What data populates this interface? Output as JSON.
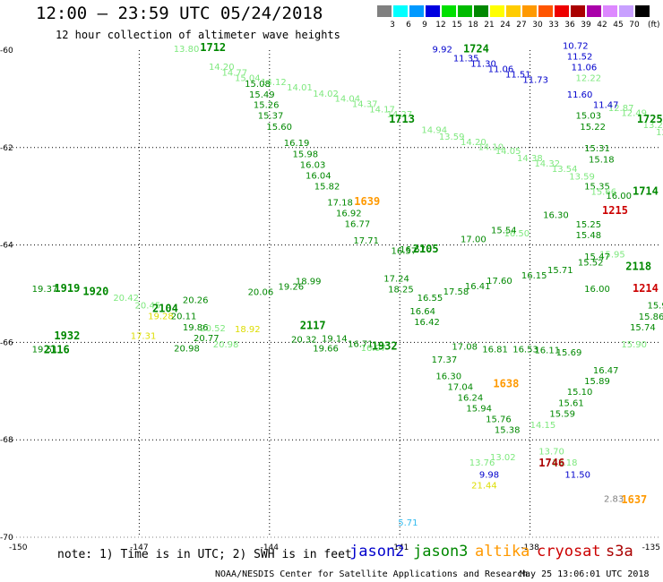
{
  "title": "12:00 – 23:59 UTC 05/24/2018",
  "subtitle": "12 hour collection of altimeter wave heights",
  "legend": {
    "values": [
      "3",
      "6",
      "9",
      "12",
      "15",
      "18",
      "21",
      "24",
      "27",
      "30",
      "33",
      "36",
      "39",
      "42",
      "45",
      "70"
    ],
    "unit": "(ft)",
    "colors": [
      "#808080",
      "#00ffff",
      "#0099ff",
      "#0000e0",
      "#00e000",
      "#00bb00",
      "#008800",
      "#ffff00",
      "#ffcc00",
      "#ff9900",
      "#ff5500",
      "#ee0000",
      "#aa0000",
      "#aa00aa",
      "#dd88ff",
      "#c8a0ff",
      "#000000"
    ]
  },
  "axes": {
    "lat_labels": [
      "-60",
      "-62",
      "-64",
      "-66",
      "-68",
      "-70"
    ],
    "lon_labels": [
      "-150",
      "-147",
      "-144",
      "-141",
      "-138",
      "-135"
    ]
  },
  "note": "note: 1) Time is in UTC; 2) SWH is in feet",
  "satellites": [
    {
      "name": "jason2",
      "color": "#0000cc"
    },
    {
      "name": "jason3",
      "color": "#008800"
    },
    {
      "name": "altika",
      "color": "#ff9900"
    },
    {
      "name": "cryosat",
      "color": "#cc0000"
    },
    {
      "name": "s3a",
      "color": "#aa0000"
    }
  ],
  "credit": "NOAA/NESDIS Center for Satellite Applications and Research",
  "timestamp": "May 25 13:06:01 UTC 2018",
  "map_data": {
    "lon_range": [
      -150,
      -135
    ],
    "lat_range": [
      -70,
      -60
    ],
    "track_time_labels": [
      {
        "text": "1712",
        "lon": -145.6,
        "lat": -60.02,
        "color": "#008800"
      },
      {
        "text": "1724",
        "lon": -139.54,
        "lat": -60.05,
        "color": "#008800"
      },
      {
        "text": "1713",
        "lon": -141.25,
        "lat": -61.49,
        "color": "#008800"
      },
      {
        "text": "1725",
        "lon": -135.54,
        "lat": -61.49,
        "color": "#008800"
      },
      {
        "text": "1639",
        "lon": -142.05,
        "lat": -63.18,
        "color": "#ff9900"
      },
      {
        "text": "1714",
        "lon": -135.64,
        "lat": -62.97,
        "color": "#008800"
      },
      {
        "text": "1215",
        "lon": -136.34,
        "lat": -63.36,
        "color": "#cc0000"
      },
      {
        "text": "2105",
        "lon": -140.7,
        "lat": -64.15,
        "color": "#008800"
      },
      {
        "text": "2118",
        "lon": -135.8,
        "lat": -64.51,
        "color": "#008800"
      },
      {
        "text": "1214",
        "lon": -135.64,
        "lat": -64.96,
        "color": "#cc0000"
      },
      {
        "text": "1919",
        "lon": -148.96,
        "lat": -64.96,
        "color": "#008800"
      },
      {
        "text": "1920",
        "lon": -148.3,
        "lat": -65.03,
        "color": "#008800"
      },
      {
        "text": "2104",
        "lon": -146.7,
        "lat": -65.38,
        "color": "#008800"
      },
      {
        "text": "2117",
        "lon": -143.3,
        "lat": -65.73,
        "color": "#008800"
      },
      {
        "text": "1932",
        "lon": -148.96,
        "lat": -65.94,
        "color": "#008800"
      },
      {
        "text": "2116",
        "lon": -149.2,
        "lat": -66.22,
        "color": "#008800"
      },
      {
        "text": "1932",
        "lon": -141.65,
        "lat": -66.15,
        "color": "#008800"
      },
      {
        "text": "1638",
        "lon": -138.85,
        "lat": -66.92,
        "color": "#ff9900"
      },
      {
        "text": "1746",
        "lon": -137.8,
        "lat": -68.55,
        "color": "#aa0000"
      },
      {
        "text": "1637",
        "lon": -135.9,
        "lat": -69.3,
        "color": "#ff9900"
      }
    ],
    "swh_labels": [
      {
        "text": "13.80",
        "lon": -146.21,
        "lat": -60.04,
        "color": "#7ee87e"
      },
      {
        "text": "15.08",
        "lon": -144.57,
        "lat": -60.75,
        "color": "#008800"
      },
      {
        "text": "15.49",
        "lon": -144.47,
        "lat": -60.97,
        "color": "#008800"
      },
      {
        "text": "15.26",
        "lon": -144.37,
        "lat": -61.19,
        "color": "#008800"
      },
      {
        "text": "15.37",
        "lon": -144.27,
        "lat": -61.41,
        "color": "#008800"
      },
      {
        "text": "15.60",
        "lon": -144.07,
        "lat": -61.64,
        "color": "#008800"
      },
      {
        "text": "16.19",
        "lon": -143.67,
        "lat": -61.97,
        "color": "#008800"
      },
      {
        "text": "15.98",
        "lon": -143.47,
        "lat": -62.2,
        "color": "#008800"
      },
      {
        "text": "16.03",
        "lon": -143.3,
        "lat": -62.42,
        "color": "#008800"
      },
      {
        "text": "16.04",
        "lon": -143.17,
        "lat": -62.64,
        "color": "#008800"
      },
      {
        "text": "15.82",
        "lon": -142.97,
        "lat": -62.86,
        "color": "#008800"
      },
      {
        "text": "17.18",
        "lon": -142.67,
        "lat": -63.19,
        "color": "#008800"
      },
      {
        "text": "16.92",
        "lon": -142.47,
        "lat": -63.41,
        "color": "#008800"
      },
      {
        "text": "16.77",
        "lon": -142.27,
        "lat": -63.63,
        "color": "#008800"
      },
      {
        "text": "17.71",
        "lon": -142.07,
        "lat": -63.97,
        "color": "#008800"
      },
      {
        "text": "17.24",
        "lon": -141.37,
        "lat": -64.75,
        "color": "#008800"
      },
      {
        "text": "18.25",
        "lon": -141.27,
        "lat": -64.97,
        "color": "#008800"
      },
      {
        "text": "16.64",
        "lon": -140.77,
        "lat": -65.42,
        "color": "#008800"
      },
      {
        "text": "16.42",
        "lon": -140.67,
        "lat": -65.64,
        "color": "#008800"
      },
      {
        "text": "17.37",
        "lon": -140.27,
        "lat": -66.42,
        "color": "#008800"
      },
      {
        "text": "16.30",
        "lon": -140.17,
        "lat": -66.76,
        "color": "#008800"
      },
      {
        "text": "17.04",
        "lon": -139.9,
        "lat": -66.98,
        "color": "#008800"
      },
      {
        "text": "16.24",
        "lon": -139.67,
        "lat": -67.2,
        "color": "#008800"
      },
      {
        "text": "15.94",
        "lon": -139.47,
        "lat": -67.42,
        "color": "#008800"
      },
      {
        "text": "15.76",
        "lon": -139.02,
        "lat": -67.64,
        "color": "#008800"
      },
      {
        "text": "15.38",
        "lon": -138.82,
        "lat": -67.86,
        "color": "#008800"
      },
      {
        "text": "13.02",
        "lon": -138.92,
        "lat": -68.42,
        "color": "#7ee87e"
      },
      {
        "text": "13.76",
        "lon": -139.4,
        "lat": -68.53,
        "color": "#7ee87e"
      },
      {
        "text": "9.98",
        "lon": -139.17,
        "lat": -68.78,
        "color": "#0000cc"
      },
      {
        "text": "21.44",
        "lon": -139.35,
        "lat": -69.0,
        "color": "#dddd00"
      },
      {
        "text": "5.71",
        "lon": -141.04,
        "lat": -69.76,
        "color": "#33bbee"
      },
      {
        "text": "9.92",
        "lon": -140.25,
        "lat": -60.05,
        "color": "#0000cc"
      },
      {
        "text": "11.35",
        "lon": -139.77,
        "lat": -60.23,
        "color": "#0000cc"
      },
      {
        "text": "11.30",
        "lon": -139.37,
        "lat": -60.34,
        "color": "#0000cc"
      },
      {
        "text": "11.06",
        "lon": -138.97,
        "lat": -60.45,
        "color": "#0000cc"
      },
      {
        "text": "11.51",
        "lon": -138.57,
        "lat": -60.56,
        "color": "#0000cc"
      },
      {
        "text": "11.73",
        "lon": -138.17,
        "lat": -60.67,
        "color": "#0000cc"
      },
      {
        "text": "10.72",
        "lon": -137.25,
        "lat": -59.97,
        "color": "#0000cc"
      },
      {
        "text": "11.52",
        "lon": -137.15,
        "lat": -60.19,
        "color": "#0000cc"
      },
      {
        "text": "11.06",
        "lon": -137.05,
        "lat": -60.41,
        "color": "#0000cc"
      },
      {
        "text": "12.22",
        "lon": -136.95,
        "lat": -60.63,
        "color": "#7ee87e"
      },
      {
        "text": "11.60",
        "lon": -137.15,
        "lat": -60.97,
        "color": "#0000cc"
      },
      {
        "text": "11.47",
        "lon": -136.55,
        "lat": -61.19,
        "color": "#0000cc"
      },
      {
        "text": "15.03",
        "lon": -136.95,
        "lat": -61.41,
        "color": "#008800"
      },
      {
        "text": "15.22",
        "lon": -136.85,
        "lat": -61.64,
        "color": "#008800"
      },
      {
        "text": "15.31",
        "lon": -136.75,
        "lat": -62.08,
        "color": "#008800"
      },
      {
        "text": "15.18",
        "lon": -136.65,
        "lat": -62.31,
        "color": "#008800"
      },
      {
        "text": "15.35",
        "lon": -136.75,
        "lat": -62.86,
        "color": "#008800"
      },
      {
        "text": "15.25",
        "lon": -136.95,
        "lat": -63.64,
        "color": "#008800"
      },
      {
        "text": "15.48",
        "lon": -136.95,
        "lat": -63.86,
        "color": "#008800"
      },
      {
        "text": "15.47",
        "lon": -136.75,
        "lat": -64.3,
        "color": "#008800"
      },
      {
        "text": "16.00",
        "lon": -136.75,
        "lat": -64.96,
        "color": "#008800"
      },
      {
        "text": "15.97",
        "lon": -135.3,
        "lat": -65.3,
        "color": "#008800"
      },
      {
        "text": "15.86",
        "lon": -135.5,
        "lat": -65.53,
        "color": "#008800"
      },
      {
        "text": "15.74",
        "lon": -135.7,
        "lat": -65.75,
        "color": "#008800"
      },
      {
        "text": "16.47",
        "lon": -136.55,
        "lat": -66.64,
        "color": "#008800"
      },
      {
        "text": "15.89",
        "lon": -136.75,
        "lat": -66.86,
        "color": "#008800"
      },
      {
        "text": "15.10",
        "lon": -137.15,
        "lat": -67.08,
        "color": "#008800"
      },
      {
        "text": "15.61",
        "lon": -137.35,
        "lat": -67.31,
        "color": "#008800"
      },
      {
        "text": "15.59",
        "lon": -137.55,
        "lat": -67.53,
        "color": "#008800"
      },
      {
        "text": "14.15",
        "lon": -138.0,
        "lat": -67.76,
        "color": "#7ee87e"
      },
      {
        "text": "13.70",
        "lon": -137.8,
        "lat": -68.3,
        "color": "#7ee87e"
      },
      {
        "text": "13.18",
        "lon": -137.5,
        "lat": -68.53,
        "color": "#7ee87e"
      },
      {
        "text": "11.50",
        "lon": -137.2,
        "lat": -68.78,
        "color": "#0000cc"
      },
      {
        "text": "2.83",
        "lon": -136.3,
        "lat": -69.27,
        "color": "#808080"
      },
      {
        "text": "19.37",
        "lon": -149.47,
        "lat": -64.96,
        "color": "#008800"
      },
      {
        "text": "19.51",
        "lon": -149.47,
        "lat": -66.2,
        "color": "#008800"
      },
      {
        "text": "20.26",
        "lon": -146.0,
        "lat": -65.19,
        "color": "#008800"
      },
      {
        "text": "20.11",
        "lon": -146.27,
        "lat": -65.52,
        "color": "#008800"
      },
      {
        "text": "19.86",
        "lon": -146.0,
        "lat": -65.75,
        "color": "#008800"
      },
      {
        "text": "20.77",
        "lon": -145.75,
        "lat": -65.97,
        "color": "#008800"
      },
      {
        "text": "20.98",
        "lon": -146.2,
        "lat": -66.19,
        "color": "#008800"
      },
      {
        "text": "20.32",
        "lon": -143.5,
        "lat": -66.0,
        "color": "#008800"
      },
      {
        "text": "19.66",
        "lon": -143.0,
        "lat": -66.19,
        "color": "#008800"
      },
      {
        "text": "20.06",
        "lon": -144.5,
        "lat": -65.03,
        "color": "#008800"
      },
      {
        "text": "19.26",
        "lon": -143.8,
        "lat": -64.92,
        "color": "#008800"
      },
      {
        "text": "18.99",
        "lon": -143.4,
        "lat": -64.81,
        "color": "#008800"
      },
      {
        "text": "17.58",
        "lon": -140.0,
        "lat": -65.02,
        "color": "#008800"
      },
      {
        "text": "16.41",
        "lon": -139.5,
        "lat": -64.91,
        "color": "#008800"
      },
      {
        "text": "17.60",
        "lon": -139.0,
        "lat": -64.8,
        "color": "#008800"
      },
      {
        "text": "16.15",
        "lon": -138.2,
        "lat": -64.69,
        "color": "#008800"
      },
      {
        "text": "15.71",
        "lon": -137.6,
        "lat": -64.58,
        "color": "#008800"
      },
      {
        "text": "15.52",
        "lon": -136.9,
        "lat": -64.42,
        "color": "#008800"
      },
      {
        "text": "16.67",
        "lon": -141.0,
        "lat": -64.15,
        "color": "#008800"
      },
      {
        "text": "17.00",
        "lon": -139.6,
        "lat": -63.94,
        "color": "#008800"
      },
      {
        "text": "15.54",
        "lon": -138.9,
        "lat": -63.76,
        "color": "#008800"
      },
      {
        "text": "16.30",
        "lon": -137.7,
        "lat": -63.45,
        "color": "#008800"
      },
      {
        "text": "16.53",
        "lon": -138.4,
        "lat": -66.2,
        "color": "#008800"
      },
      {
        "text": "16.11",
        "lon": -137.9,
        "lat": -66.22,
        "color": "#008800"
      },
      {
        "text": "15.69",
        "lon": -137.4,
        "lat": -66.27,
        "color": "#008800"
      },
      {
        "text": "17.08",
        "lon": -139.8,
        "lat": -66.15,
        "color": "#008800"
      },
      {
        "text": "16.81",
        "lon": -139.1,
        "lat": -66.2,
        "color": "#008800"
      },
      {
        "text": "16.71",
        "lon": -142.2,
        "lat": -66.09,
        "color": "#008800"
      },
      {
        "text": "19.14",
        "lon": -142.8,
        "lat": -65.98,
        "color": "#008800"
      },
      {
        "text": "15.66",
        "lon": -136.6,
        "lat": -62.97,
        "color": "#7ee87e"
      },
      {
        "text": "16.00",
        "lon": -136.25,
        "lat": -63.05,
        "color": "#008800"
      }
    ],
    "dense_band_labels": [
      {
        "text": "14.20",
        "lon": -145.4,
        "lat": -60.4,
        "color": "#7ee87e"
      },
      {
        "text": "14.77",
        "lon": -145.1,
        "lat": -60.52,
        "color": "#7ee87e"
      },
      {
        "text": "15.04",
        "lon": -144.8,
        "lat": -60.63,
        "color": "#7ee87e"
      },
      {
        "text": "14.12",
        "lon": -144.2,
        "lat": -60.72,
        "color": "#7ee87e"
      },
      {
        "text": "14.01",
        "lon": -143.6,
        "lat": -60.83,
        "color": "#7ee87e"
      },
      {
        "text": "14.02",
        "lon": -143.0,
        "lat": -60.96,
        "color": "#7ee87e"
      },
      {
        "text": "14.04",
        "lon": -142.5,
        "lat": -61.06,
        "color": "#7ee87e"
      },
      {
        "text": "14.37",
        "lon": -142.1,
        "lat": -61.17,
        "color": "#7ee87e"
      },
      {
        "text": "14.17",
        "lon": -141.7,
        "lat": -61.28,
        "color": "#7ee87e"
      },
      {
        "text": "14.27",
        "lon": -141.3,
        "lat": -61.38,
        "color": "#7ee87e"
      },
      {
        "text": "14.94",
        "lon": -140.5,
        "lat": -61.7,
        "color": "#7ee87e"
      },
      {
        "text": "13.59",
        "lon": -140.1,
        "lat": -61.84,
        "color": "#7ee87e"
      },
      {
        "text": "14.20",
        "lon": -139.6,
        "lat": -61.95,
        "color": "#7ee87e"
      },
      {
        "text": "14.10",
        "lon": -139.2,
        "lat": -62.05,
        "color": "#7ee87e"
      },
      {
        "text": "14.05",
        "lon": -138.8,
        "lat": -62.13,
        "color": "#7ee87e"
      },
      {
        "text": "14.38",
        "lon": -138.3,
        "lat": -62.28,
        "color": "#7ee87e"
      },
      {
        "text": "14.32",
        "lon": -137.9,
        "lat": -62.39,
        "color": "#7ee87e"
      },
      {
        "text": "13.54",
        "lon": -137.5,
        "lat": -62.5,
        "color": "#7ee87e"
      },
      {
        "text": "13.59",
        "lon": -137.1,
        "lat": -62.66,
        "color": "#7ee87e"
      },
      {
        "text": "12.87",
        "lon": -136.2,
        "lat": -61.25,
        "color": "#7ee87e"
      },
      {
        "text": "12.49",
        "lon": -135.9,
        "lat": -61.35,
        "color": "#7ee87e"
      },
      {
        "text": "13.23",
        "lon": -135.4,
        "lat": -61.6,
        "color": "#7ee87e"
      },
      {
        "text": "12.59",
        "lon": -135.1,
        "lat": -61.75,
        "color": "#7ee87e"
      },
      {
        "text": "20.42",
        "lon": -147.6,
        "lat": -65.15,
        "color": "#7ee87e"
      },
      {
        "text": "20.45",
        "lon": -147.1,
        "lat": -65.3,
        "color": "#7ee87e"
      },
      {
        "text": "19.28",
        "lon": -146.8,
        "lat": -65.52,
        "color": "#dddd00"
      },
      {
        "text": "20.52",
        "lon": -145.6,
        "lat": -65.77,
        "color": "#7ee87e"
      },
      {
        "text": "17.31",
        "lon": -147.2,
        "lat": -65.93,
        "color": "#dddd00"
      },
      {
        "text": "20.98",
        "lon": -145.3,
        "lat": -66.1,
        "color": "#7ee87e"
      },
      {
        "text": "18.92",
        "lon": -144.8,
        "lat": -65.79,
        "color": "#dddd00"
      },
      {
        "text": "16.97",
        "lon": -141.9,
        "lat": -66.18,
        "color": "#7ee87e"
      },
      {
        "text": "16.55",
        "lon": -140.6,
        "lat": -65.15,
        "color": "#008800"
      },
      {
        "text": "16.57",
        "lon": -141.2,
        "lat": -64.18,
        "color": "#008800"
      },
      {
        "text": "16.50",
        "lon": -138.6,
        "lat": -63.82,
        "color": "#7ee87e"
      },
      {
        "text": "15.95",
        "lon": -136.4,
        "lat": -64.26,
        "color": "#7ee87e"
      },
      {
        "text": "15.90",
        "lon": -135.9,
        "lat": -66.1,
        "color": "#7ee87e"
      }
    ]
  }
}
